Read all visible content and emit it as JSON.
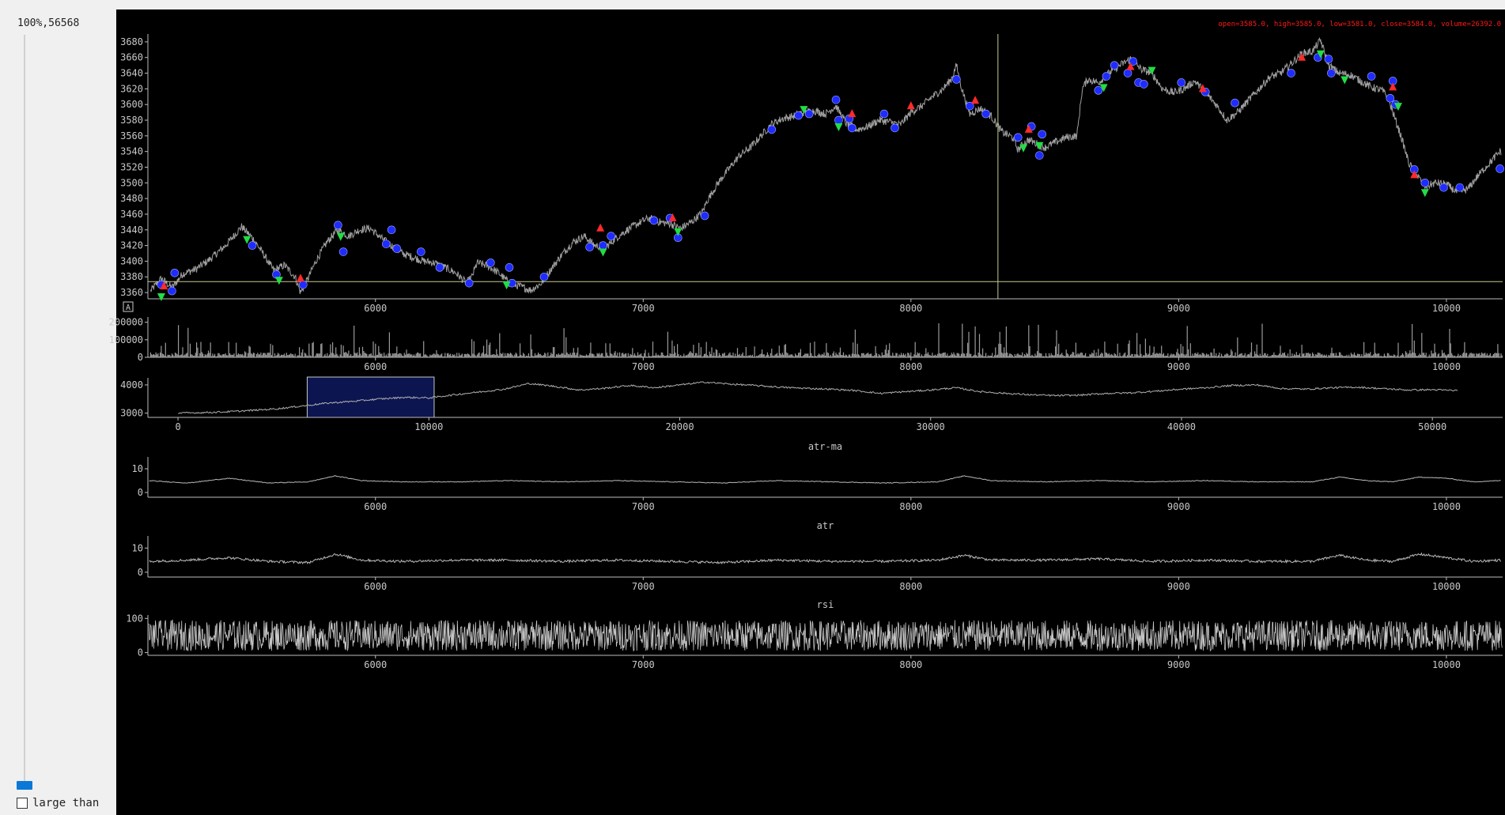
{
  "sidebar": {
    "progress_readout": "100%,56568",
    "slider_percent": 100,
    "checkbox_label": "large than",
    "checkbox_checked": false
  },
  "header": {
    "ohlc_readout": "open=3585.0, high=3585.0, low=3581.0, close=3584.0, volume=26392.0"
  },
  "colors": {
    "background": "#000000",
    "price_line": "#a0a0a0",
    "cursor_line": "#c8c890",
    "up_marker": "#ff2a2a",
    "down_marker": "#22dd44",
    "point_marker": "#1e2cff",
    "readout_text": "#ff1a1a",
    "selection_fill": "#0c1550"
  },
  "chart_data": [
    {
      "type": "line",
      "panel": "price",
      "x_ticks": [
        6000,
        7000,
        8000,
        9000,
        10000
      ],
      "y_ticks": [
        3360,
        3380,
        3400,
        3420,
        3440,
        3460,
        3480,
        3500,
        3520,
        3540,
        3560,
        3580,
        3600,
        3620,
        3640,
        3660,
        3680
      ],
      "xlim": [
        5150,
        10210
      ],
      "ylim": [
        3352,
        3690
      ],
      "cursor": {
        "x": 8325,
        "y": 3374
      },
      "series": [
        {
          "x": [
            5160,
            5200,
            5240,
            5280,
            5330,
            5380,
            5440,
            5500,
            5540,
            5580,
            5620,
            5660,
            5700,
            5720,
            5740,
            5780,
            5820,
            5860,
            5900,
            5940,
            5980,
            6020,
            6060,
            6100,
            6140,
            6180,
            6220,
            6260,
            6300,
            6340,
            6360,
            6380,
            6420,
            6460,
            6500,
            6540,
            6580,
            6620,
            6660,
            6700,
            6740,
            6780,
            6820,
            6860,
            6900,
            6940,
            6980,
            7020,
            7060,
            7100,
            7140,
            7180,
            7220,
            7240,
            7280,
            7320,
            7360,
            7400,
            7440,
            7480,
            7520,
            7560,
            7600,
            7640,
            7680,
            7720,
            7760,
            7800,
            7840,
            7880,
            7920,
            7960,
            8000,
            8040,
            8080,
            8120,
            8150,
            8170,
            8190,
            8220,
            8260,
            8300,
            8340,
            8380,
            8400,
            8420,
            8440,
            8470,
            8500,
            8540,
            8580,
            8620,
            8640,
            8660,
            8700,
            8740,
            8780,
            8820,
            8860,
            8900,
            8940,
            8980,
            9020,
            9060,
            9100,
            9140,
            9180,
            9220,
            9260,
            9300,
            9340,
            9380,
            9420,
            9460,
            9500,
            9530,
            9560,
            9600,
            9640,
            9680,
            9720,
            9760,
            9780,
            9800,
            9830,
            9860,
            9890,
            9920,
            9960,
            10000,
            10040,
            10080,
            10120,
            10160,
            10200
          ],
          "y": [
            3362,
            3378,
            3366,
            3384,
            3390,
            3402,
            3420,
            3444,
            3430,
            3410,
            3388,
            3395,
            3380,
            3360,
            3372,
            3402,
            3425,
            3440,
            3432,
            3440,
            3442,
            3430,
            3420,
            3410,
            3405,
            3400,
            3398,
            3392,
            3385,
            3372,
            3380,
            3398,
            3394,
            3385,
            3372,
            3368,
            3363,
            3372,
            3392,
            3410,
            3425,
            3432,
            3420,
            3418,
            3430,
            3440,
            3448,
            3455,
            3450,
            3448,
            3442,
            3450,
            3462,
            3478,
            3500,
            3518,
            3535,
            3545,
            3560,
            3575,
            3582,
            3585,
            3590,
            3592,
            3588,
            3598,
            3575,
            3568,
            3572,
            3580,
            3578,
            3574,
            3590,
            3598,
            3610,
            3620,
            3632,
            3650,
            3620,
            3588,
            3595,
            3585,
            3565,
            3558,
            3542,
            3550,
            3555,
            3550,
            3545,
            3552,
            3558,
            3560,
            3620,
            3632,
            3628,
            3640,
            3650,
            3658,
            3645,
            3640,
            3620,
            3615,
            3620,
            3630,
            3615,
            3600,
            3580,
            3590,
            3605,
            3620,
            3635,
            3640,
            3652,
            3665,
            3668,
            3682,
            3650,
            3640,
            3638,
            3630,
            3622,
            3618,
            3610,
            3590,
            3560,
            3525,
            3510,
            3495,
            3500,
            3498,
            3488,
            3492,
            3510,
            3525,
            3540
          ]
        }
      ],
      "up_markers": [
        [
          5210,
          3368
        ],
        [
          5720,
          3378
        ],
        [
          6840,
          3442
        ],
        [
          7110,
          3455
        ],
        [
          7780,
          3588
        ],
        [
          8000,
          3598
        ],
        [
          8240,
          3605
        ],
        [
          8440,
          3568
        ],
        [
          8820,
          3648
        ],
        [
          9090,
          3620
        ],
        [
          9460,
          3660
        ],
        [
          9800,
          3622
        ],
        [
          9880,
          3510
        ]
      ],
      "down_markers": [
        [
          5200,
          3355
        ],
        [
          5520,
          3428
        ],
        [
          5640,
          3376
        ],
        [
          5870,
          3432
        ],
        [
          6490,
          3370
        ],
        [
          6850,
          3412
        ],
        [
          7130,
          3438
        ],
        [
          7600,
          3594
        ],
        [
          7730,
          3572
        ],
        [
          8420,
          3545
        ],
        [
          8480,
          3548
        ],
        [
          8720,
          3622
        ],
        [
          8900,
          3644
        ],
        [
          9530,
          3665
        ],
        [
          9620,
          3632
        ],
        [
          9820,
          3598
        ],
        [
          9920,
          3488
        ]
      ],
      "point_markers": [
        [
          5200,
          3370
        ],
        [
          5240,
          3362
        ],
        [
          5250,
          3385
        ],
        [
          5540,
          3420
        ],
        [
          5630,
          3383
        ],
        [
          5730,
          3370
        ],
        [
          5860,
          3446
        ],
        [
          5880,
          3412
        ],
        [
          6040,
          3422
        ],
        [
          6060,
          3440
        ],
        [
          6080,
          3416
        ],
        [
          6170,
          3412
        ],
        [
          6240,
          3392
        ],
        [
          6350,
          3372
        ],
        [
          6430,
          3398
        ],
        [
          6500,
          3392
        ],
        [
          6510,
          3372
        ],
        [
          6630,
          3380
        ],
        [
          6800,
          3418
        ],
        [
          6850,
          3420
        ],
        [
          6880,
          3432
        ],
        [
          7040,
          3452
        ],
        [
          7100,
          3455
        ],
        [
          7130,
          3430
        ],
        [
          7230,
          3458
        ],
        [
          7480,
          3568
        ],
        [
          7580,
          3586
        ],
        [
          7620,
          3588
        ],
        [
          7720,
          3606
        ],
        [
          7730,
          3580
        ],
        [
          7770,
          3582
        ],
        [
          7780,
          3570
        ],
        [
          7900,
          3588
        ],
        [
          7940,
          3570
        ],
        [
          8170,
          3632
        ],
        [
          8220,
          3598
        ],
        [
          8280,
          3588
        ],
        [
          8400,
          3558
        ],
        [
          8450,
          3572
        ],
        [
          8480,
          3535
        ],
        [
          8490,
          3562
        ],
        [
          8700,
          3618
        ],
        [
          8730,
          3636
        ],
        [
          8760,
          3650
        ],
        [
          8810,
          3640
        ],
        [
          8830,
          3655
        ],
        [
          8850,
          3628
        ],
        [
          8870,
          3626
        ],
        [
          9010,
          3628
        ],
        [
          9100,
          3616
        ],
        [
          9210,
          3602
        ],
        [
          9420,
          3640
        ],
        [
          9520,
          3660
        ],
        [
          9560,
          3658
        ],
        [
          9570,
          3640
        ],
        [
          9720,
          3636
        ],
        [
          9790,
          3608
        ],
        [
          9800,
          3630
        ],
        [
          9810,
          3600
        ],
        [
          9880,
          3517
        ],
        [
          9920,
          3500
        ],
        [
          9990,
          3494
        ],
        [
          10050,
          3494
        ],
        [
          10200,
          3518
        ]
      ]
    },
    {
      "type": "bar",
      "panel": "volume",
      "x_ticks": [
        6000,
        7000,
        8000,
        9000,
        10000
      ],
      "y_ticks": [
        0,
        100000,
        200000
      ],
      "xlim": [
        5150,
        10210
      ],
      "ylim": [
        0,
        230000
      ]
    },
    {
      "type": "line",
      "panel": "overview",
      "x_ticks": [
        0,
        10000,
        20000,
        30000,
        40000,
        50000
      ],
      "y_ticks": [
        3000,
        4000
      ],
      "xlim": [
        -1200,
        52800
      ],
      "ylim": [
        2850,
        4250
      ],
      "selection": [
        5150,
        10210
      ],
      "series": [
        {
          "x": [
            0,
            1000,
            2000,
            3000,
            4000,
            5000,
            6000,
            7000,
            8000,
            9000,
            10000,
            11000,
            12000,
            13000,
            14000,
            15000,
            16000,
            17000,
            18000,
            19000,
            20000,
            21000,
            22000,
            23000,
            24000,
            25000,
            26000,
            27000,
            28000,
            29000,
            30000,
            31000,
            32000,
            33000,
            34000,
            35000,
            36000,
            37000,
            38000,
            39000,
            40000,
            41000,
            42000,
            43000,
            44000,
            45000,
            46000,
            47000,
            48000,
            49000,
            50000,
            51000
          ],
          "y": [
            3000,
            3020,
            3050,
            3100,
            3160,
            3260,
            3360,
            3420,
            3500,
            3560,
            3540,
            3650,
            3750,
            3850,
            4050,
            3950,
            3820,
            3880,
            3980,
            3900,
            4000,
            4100,
            4030,
            3980,
            3920,
            3880,
            3850,
            3800,
            3700,
            3760,
            3820,
            3900,
            3760,
            3700,
            3650,
            3620,
            3640,
            3700,
            3720,
            3780,
            3850,
            3900,
            3980,
            4000,
            3870,
            3850,
            3900,
            3920,
            3870,
            3820,
            3830,
            3800
          ]
        }
      ]
    },
    {
      "type": "line",
      "panel": "indicator",
      "title": "atr-ma",
      "x_ticks": [
        6000,
        7000,
        8000,
        9000,
        10000
      ],
      "y_ticks": [
        0,
        10
      ],
      "xlim": [
        5150,
        10210
      ],
      "ylim": [
        -2,
        15
      ],
      "series": [
        {
          "x": [
            5150,
            5300,
            5450,
            5600,
            5750,
            5850,
            5950,
            6100,
            6300,
            6500,
            6700,
            6900,
            7100,
            7300,
            7500,
            7700,
            7900,
            8100,
            8200,
            8300,
            8500,
            8700,
            8900,
            9100,
            9300,
            9500,
            9600,
            9700,
            9800,
            9900,
            10000,
            10100,
            10200
          ],
          "y": [
            5,
            4,
            6,
            4,
            4.5,
            7,
            5,
            4.5,
            4.5,
            5,
            4.5,
            5,
            4.5,
            4,
            5,
            4.5,
            4,
            4.5,
            7,
            5,
            4.5,
            5,
            4.5,
            5,
            4.5,
            4.5,
            6.5,
            5,
            4.5,
            6.5,
            6,
            4.5,
            5
          ]
        }
      ]
    },
    {
      "type": "line",
      "panel": "indicator",
      "title": "atr",
      "x_ticks": [
        6000,
        7000,
        8000,
        9000,
        10000
      ],
      "y_ticks": [
        0,
        10
      ],
      "xlim": [
        5150,
        10210
      ],
      "ylim": [
        -2,
        15
      ],
      "series": [
        {
          "x": [
            5150,
            5300,
            5450,
            5600,
            5750,
            5850,
            5950,
            6100,
            6300,
            6500,
            6700,
            6900,
            7100,
            7300,
            7500,
            7700,
            7900,
            8100,
            8200,
            8300,
            8500,
            8700,
            8900,
            9100,
            9300,
            9500,
            9600,
            9700,
            9800,
            9900,
            10000,
            10100,
            10200
          ],
          "y": [
            4.5,
            5,
            6,
            4.5,
            4,
            7.5,
            5,
            4.5,
            5,
            5,
            4.5,
            5,
            4.5,
            4,
            5,
            4.5,
            4.5,
            5,
            7,
            5,
            5,
            5.5,
            4.5,
            5,
            4.5,
            4.5,
            7,
            5,
            4.5,
            7.5,
            6,
            4.5,
            5
          ]
        }
      ]
    },
    {
      "type": "line",
      "panel": "indicator",
      "title": "rsi",
      "x_ticks": [
        6000,
        7000,
        8000,
        9000,
        10000
      ],
      "y_ticks": [
        0,
        100
      ],
      "xlim": [
        5150,
        10210
      ],
      "ylim": [
        -8,
        110
      ]
    }
  ]
}
